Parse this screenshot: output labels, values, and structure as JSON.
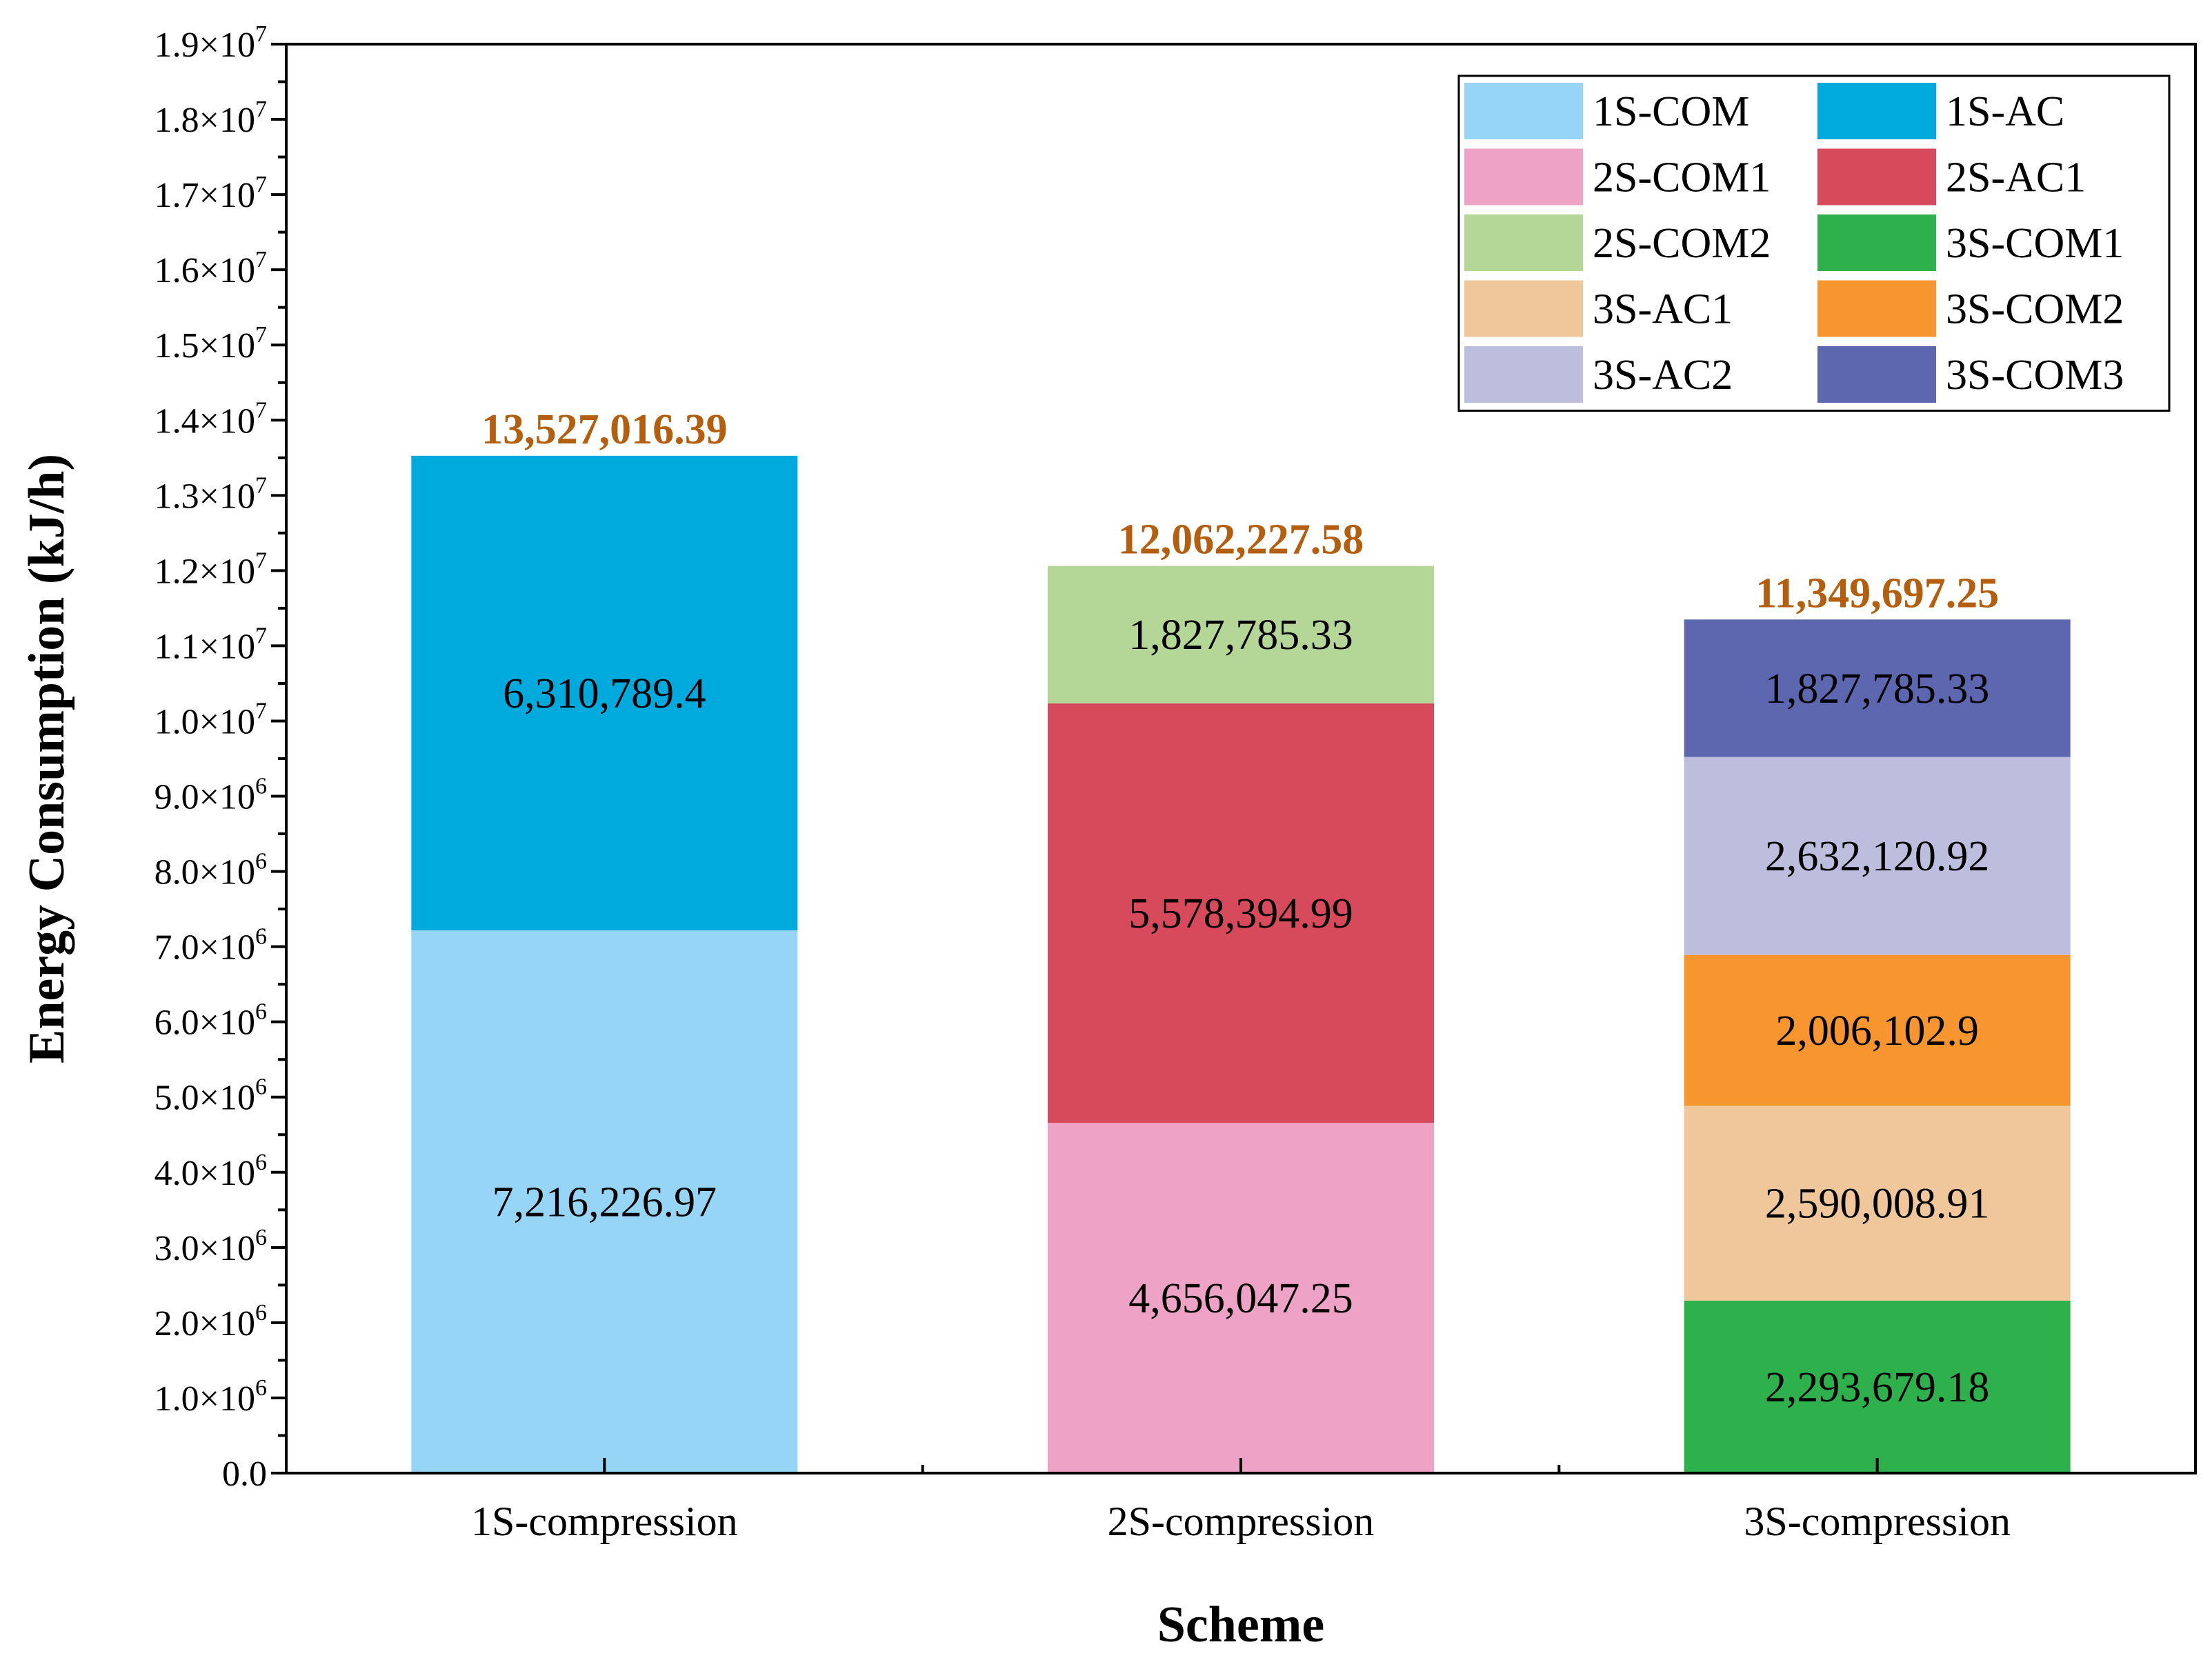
{
  "chart_data": {
    "type": "bar",
    "stacked": true,
    "title": "",
    "xlabel": "Scheme",
    "ylabel": "Energy Consumption (kJ/h)",
    "ylim": [
      0,
      19000000
    ],
    "y_ticks": [
      {
        "value": 0,
        "mantissa": "0.0",
        "exp": ""
      },
      {
        "value": 1000000,
        "mantissa": "1.0×10",
        "exp": "6"
      },
      {
        "value": 2000000,
        "mantissa": "2.0×10",
        "exp": "6"
      },
      {
        "value": 3000000,
        "mantissa": "3.0×10",
        "exp": "6"
      },
      {
        "value": 4000000,
        "mantissa": "4.0×10",
        "exp": "6"
      },
      {
        "value": 5000000,
        "mantissa": "5.0×10",
        "exp": "6"
      },
      {
        "value": 6000000,
        "mantissa": "6.0×10",
        "exp": "6"
      },
      {
        "value": 7000000,
        "mantissa": "7.0×10",
        "exp": "6"
      },
      {
        "value": 8000000,
        "mantissa": "8.0×10",
        "exp": "6"
      },
      {
        "value": 9000000,
        "mantissa": "9.0×10",
        "exp": "6"
      },
      {
        "value": 10000000,
        "mantissa": "1.0×10",
        "exp": "7"
      },
      {
        "value": 11000000,
        "mantissa": "1.1×10",
        "exp": "7"
      },
      {
        "value": 12000000,
        "mantissa": "1.2×10",
        "exp": "7"
      },
      {
        "value": 13000000,
        "mantissa": "1.3×10",
        "exp": "7"
      },
      {
        "value": 14000000,
        "mantissa": "1.4×10",
        "exp": "7"
      },
      {
        "value": 15000000,
        "mantissa": "1.5×10",
        "exp": "7"
      },
      {
        "value": 16000000,
        "mantissa": "1.6×10",
        "exp": "7"
      },
      {
        "value": 17000000,
        "mantissa": "1.7×10",
        "exp": "7"
      },
      {
        "value": 18000000,
        "mantissa": "1.8×10",
        "exp": "7"
      },
      {
        "value": 19000000,
        "mantissa": "1.9×10",
        "exp": "7"
      }
    ],
    "categories": [
      "1S-compression",
      "2S-compression",
      "3S-compression"
    ],
    "bars": [
      {
        "category": "1S-compression",
        "total": 13527016.39,
        "total_label": "13,527,016.39",
        "segments": [
          {
            "series": "1S-COM",
            "value": 7216226.97,
            "label": "7,216,226.97"
          },
          {
            "series": "1S-AC",
            "value": 6310789.4,
            "label": "6,310,789.4"
          }
        ]
      },
      {
        "category": "2S-compression",
        "total": 12062227.58,
        "total_label": "12,062,227.58",
        "segments": [
          {
            "series": "2S-COM1",
            "value": 4656047.25,
            "label": "4,656,047.25"
          },
          {
            "series": "2S-AC1",
            "value": 5578394.99,
            "label": "5,578,394.99"
          },
          {
            "series": "2S-COM2",
            "value": 1827785.33,
            "label": "1,827,785.33"
          }
        ]
      },
      {
        "category": "3S-compression",
        "total": 11349697.25,
        "total_label": "11,349,697.25",
        "segments": [
          {
            "series": "3S-COM1",
            "value": 2293679.18,
            "label": "2,293,679.18"
          },
          {
            "series": "3S-AC1",
            "value": 2590008.91,
            "label": "2,590,008.91"
          },
          {
            "series": "3S-COM2",
            "value": 2006102.9,
            "label": "2,006,102.9"
          },
          {
            "series": "3S-AC2",
            "value": 2632120.92,
            "label": "2,632,120.92"
          },
          {
            "series": "3S-COM3",
            "value": 1827785.33,
            "label": "1,827,785.33"
          }
        ]
      }
    ],
    "legend": {
      "position": "top-right",
      "columns": 2,
      "entries": [
        {
          "name": "1S-COM",
          "color": "#96d5f6"
        },
        {
          "name": "1S-AC",
          "color": "#00aadd"
        },
        {
          "name": "2S-COM1",
          "color": "#eea3c6"
        },
        {
          "name": "2S-AC1",
          "color": "#d74a5b"
        },
        {
          "name": "2S-COM2",
          "color": "#b4d798"
        },
        {
          "name": "3S-COM1",
          "color": "#2eb14d"
        },
        {
          "name": "3S-AC1",
          "color": "#efc79a"
        },
        {
          "name": "3S-COM2",
          "color": "#f7952f"
        },
        {
          "name": "3S-AC2",
          "color": "#bdbddd"
        },
        {
          "name": "3S-COM3",
          "color": "#5d67b0"
        }
      ]
    },
    "total_label_color": "#b45f10"
  }
}
